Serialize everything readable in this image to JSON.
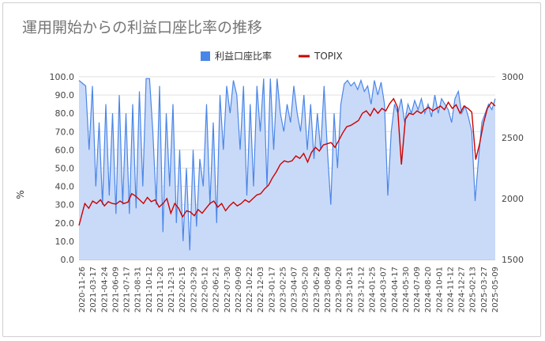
{
  "chart_data": {
    "type": "area+line",
    "title": "運用開始からの利益口座比率の推移",
    "ylabel": "%",
    "ylabel_right": "",
    "legend_position": "top",
    "grid": true,
    "series": [
      {
        "name": "利益口座比率",
        "type": "area",
        "axis": "left",
        "color": "#4a86e8",
        "fill": "#c9daf8"
      },
      {
        "name": "TOPIX",
        "type": "line",
        "axis": "right",
        "color": "#cc0000"
      }
    ],
    "y_left": {
      "min": 0,
      "max": 100,
      "ticks": [
        "0.0",
        "10.0",
        "20.0",
        "30.0",
        "40.0",
        "50.0",
        "60.0",
        "70.0",
        "80.0",
        "90.0",
        "100.0"
      ]
    },
    "y_right": {
      "min": 1500,
      "max": 3000,
      "ticks": [
        "1500",
        "2000",
        "2500",
        "3000"
      ]
    },
    "x_ticks": [
      "2020-11-26",
      "2021-03-17",
      "2021-04-24",
      "2021-06-09",
      "2021-07-17",
      "2021-08-31",
      "2021-10-12",
      "2021-11-20",
      "2021-12-31",
      "2022-02-15",
      "2022-03-29",
      "2022-05-12",
      "2022-06-21",
      "2022-07-30",
      "2022-09-09",
      "2022-10-22",
      "2022-12-03",
      "2023-01-17",
      "2023-02-25",
      "2023-04-07",
      "2023-05-20",
      "2023-06-29",
      "2023-08-09",
      "2023-09-20",
      "2023-10-31",
      "2023-12-12",
      "2024-01-25",
      "2024-03-07",
      "2024-04-17",
      "2024-05-30",
      "2024-07-09",
      "2024-08-20",
      "2024-10-01",
      "2024-11-12",
      "2024-12-27",
      "2025-02-13",
      "2025-03-27",
      "2025-05-09"
    ],
    "ratio_series": [
      [
        0,
        98
      ],
      [
        2,
        95
      ],
      [
        3,
        60
      ],
      [
        4,
        95
      ],
      [
        5,
        40
      ],
      [
        6,
        75
      ],
      [
        7,
        30
      ],
      [
        8,
        85
      ],
      [
        9,
        35
      ],
      [
        10,
        80
      ],
      [
        11,
        25
      ],
      [
        12,
        90
      ],
      [
        13,
        30
      ],
      [
        14,
        80
      ],
      [
        15,
        25
      ],
      [
        16,
        85
      ],
      [
        17,
        28
      ],
      [
        18,
        92
      ],
      [
        19,
        40
      ],
      [
        20,
        99
      ],
      [
        21,
        99
      ],
      [
        22,
        70
      ],
      [
        23,
        30
      ],
      [
        24,
        95
      ],
      [
        25,
        15
      ],
      [
        26,
        80
      ],
      [
        27,
        40
      ],
      [
        28,
        85
      ],
      [
        29,
        20
      ],
      [
        30,
        60
      ],
      [
        31,
        10
      ],
      [
        32,
        50
      ],
      [
        33,
        5
      ],
      [
        34,
        60
      ],
      [
        35,
        18
      ],
      [
        36,
        55
      ],
      [
        37,
        40
      ],
      [
        38,
        85
      ],
      [
        39,
        30
      ],
      [
        40,
        75
      ],
      [
        41,
        20
      ],
      [
        42,
        90
      ],
      [
        43,
        60
      ],
      [
        44,
        95
      ],
      [
        45,
        80
      ],
      [
        46,
        98
      ],
      [
        47,
        90
      ],
      [
        48,
        60
      ],
      [
        49,
        95
      ],
      [
        50,
        35
      ],
      [
        51,
        85
      ],
      [
        52,
        40
      ],
      [
        53,
        95
      ],
      [
        54,
        70
      ],
      [
        55,
        99
      ],
      [
        56,
        40
      ],
      [
        57,
        99
      ],
      [
        58,
        60
      ],
      [
        59,
        99
      ],
      [
        60,
        80
      ],
      [
        61,
        70
      ],
      [
        62,
        85
      ],
      [
        63,
        75
      ],
      [
        64,
        95
      ],
      [
        65,
        80
      ],
      [
        66,
        70
      ],
      [
        67,
        90
      ],
      [
        68,
        60
      ],
      [
        69,
        85
      ],
      [
        70,
        55
      ],
      [
        71,
        80
      ],
      [
        72,
        60
      ],
      [
        73,
        95
      ],
      [
        74,
        60
      ],
      [
        75,
        30
      ],
      [
        76,
        80
      ],
      [
        77,
        50
      ],
      [
        78,
        85
      ],
      [
        79,
        96
      ],
      [
        80,
        98
      ],
      [
        81,
        95
      ],
      [
        82,
        97
      ],
      [
        83,
        93
      ],
      [
        84,
        98
      ],
      [
        85,
        92
      ],
      [
        86,
        95
      ],
      [
        87,
        85
      ],
      [
        88,
        98
      ],
      [
        89,
        90
      ],
      [
        90,
        97
      ],
      [
        91,
        85
      ],
      [
        92,
        35
      ],
      [
        93,
        70
      ],
      [
        94,
        85
      ],
      [
        95,
        80
      ],
      [
        96,
        88
      ],
      [
        97,
        75
      ],
      [
        98,
        85
      ],
      [
        99,
        80
      ],
      [
        100,
        87
      ],
      [
        101,
        82
      ],
      [
        102,
        88
      ],
      [
        103,
        80
      ],
      [
        104,
        85
      ],
      [
        105,
        78
      ],
      [
        106,
        90
      ],
      [
        107,
        80
      ],
      [
        108,
        88
      ],
      [
        109,
        85
      ],
      [
        110,
        82
      ],
      [
        111,
        75
      ],
      [
        112,
        88
      ],
      [
        113,
        92
      ],
      [
        114,
        80
      ],
      [
        115,
        84
      ],
      [
        116,
        78
      ],
      [
        117,
        70
      ],
      [
        118,
        32
      ],
      [
        119,
        55
      ],
      [
        120,
        75
      ],
      [
        121,
        80
      ],
      [
        122,
        85
      ],
      [
        123,
        82
      ],
      [
        124,
        88
      ]
    ],
    "topix_series": [
      [
        0,
        1780
      ],
      [
        1,
        1840
      ],
      [
        2,
        1900
      ],
      [
        3,
        1960
      ],
      [
        5,
        1920
      ],
      [
        7,
        1980
      ],
      [
        9,
        1960
      ],
      [
        11,
        1990
      ],
      [
        13,
        1940
      ],
      [
        15,
        1975
      ],
      [
        17,
        1960
      ],
      [
        19,
        1955
      ],
      [
        21,
        1980
      ],
      [
        23,
        1960
      ],
      [
        25,
        1970
      ],
      [
        27,
        2040
      ],
      [
        29,
        2020
      ],
      [
        31,
        1990
      ],
      [
        33,
        1960
      ],
      [
        35,
        2010
      ],
      [
        37,
        1975
      ],
      [
        39,
        1990
      ],
      [
        41,
        1930
      ],
      [
        43,
        1960
      ],
      [
        45,
        2000
      ],
      [
        47,
        1880
      ],
      [
        49,
        1960
      ],
      [
        51,
        1920
      ],
      [
        53,
        1850
      ],
      [
        55,
        1900
      ],
      [
        57,
        1890
      ],
      [
        59,
        1860
      ],
      [
        61,
        1910
      ],
      [
        63,
        1880
      ],
      [
        65,
        1920
      ],
      [
        67,
        1960
      ],
      [
        69,
        1980
      ],
      [
        71,
        1930
      ],
      [
        73,
        1960
      ],
      [
        75,
        1900
      ],
      [
        77,
        1940
      ],
      [
        79,
        1970
      ],
      [
        81,
        1940
      ],
      [
        83,
        1960
      ],
      [
        85,
        1990
      ],
      [
        87,
        1970
      ],
      [
        89,
        2000
      ],
      [
        91,
        2030
      ],
      [
        93,
        2040
      ],
      [
        95,
        2080
      ],
      [
        97,
        2110
      ],
      [
        99,
        2170
      ],
      [
        101,
        2220
      ],
      [
        103,
        2280
      ],
      [
        105,
        2310
      ],
      [
        107,
        2300
      ],
      [
        109,
        2310
      ],
      [
        111,
        2350
      ],
      [
        113,
        2330
      ],
      [
        115,
        2370
      ],
      [
        117,
        2300
      ],
      [
        119,
        2380
      ],
      [
        121,
        2420
      ],
      [
        123,
        2390
      ],
      [
        125,
        2440
      ],
      [
        127,
        2450
      ],
      [
        129,
        2460
      ],
      [
        131,
        2420
      ],
      [
        133,
        2480
      ],
      [
        135,
        2540
      ],
      [
        137,
        2590
      ],
      [
        139,
        2600
      ],
      [
        141,
        2620
      ],
      [
        143,
        2640
      ],
      [
        145,
        2700
      ],
      [
        147,
        2720
      ],
      [
        149,
        2680
      ],
      [
        151,
        2740
      ],
      [
        153,
        2700
      ],
      [
        155,
        2740
      ],
      [
        157,
        2720
      ],
      [
        159,
        2780
      ],
      [
        161,
        2820
      ],
      [
        163,
        2750
      ],
      [
        165,
        2280
      ],
      [
        167,
        2650
      ],
      [
        169,
        2700
      ],
      [
        171,
        2690
      ],
      [
        173,
        2720
      ],
      [
        175,
        2700
      ],
      [
        177,
        2730
      ],
      [
        179,
        2750
      ],
      [
        181,
        2720
      ],
      [
        183,
        2740
      ],
      [
        185,
        2760
      ],
      [
        187,
        2730
      ],
      [
        189,
        2790
      ],
      [
        191,
        2740
      ],
      [
        193,
        2770
      ],
      [
        195,
        2700
      ],
      [
        197,
        2760
      ],
      [
        199,
        2740
      ],
      [
        201,
        2710
      ],
      [
        203,
        2320
      ],
      [
        205,
        2450
      ],
      [
        207,
        2620
      ],
      [
        209,
        2740
      ],
      [
        211,
        2790
      ],
      [
        213,
        2760
      ]
    ]
  }
}
